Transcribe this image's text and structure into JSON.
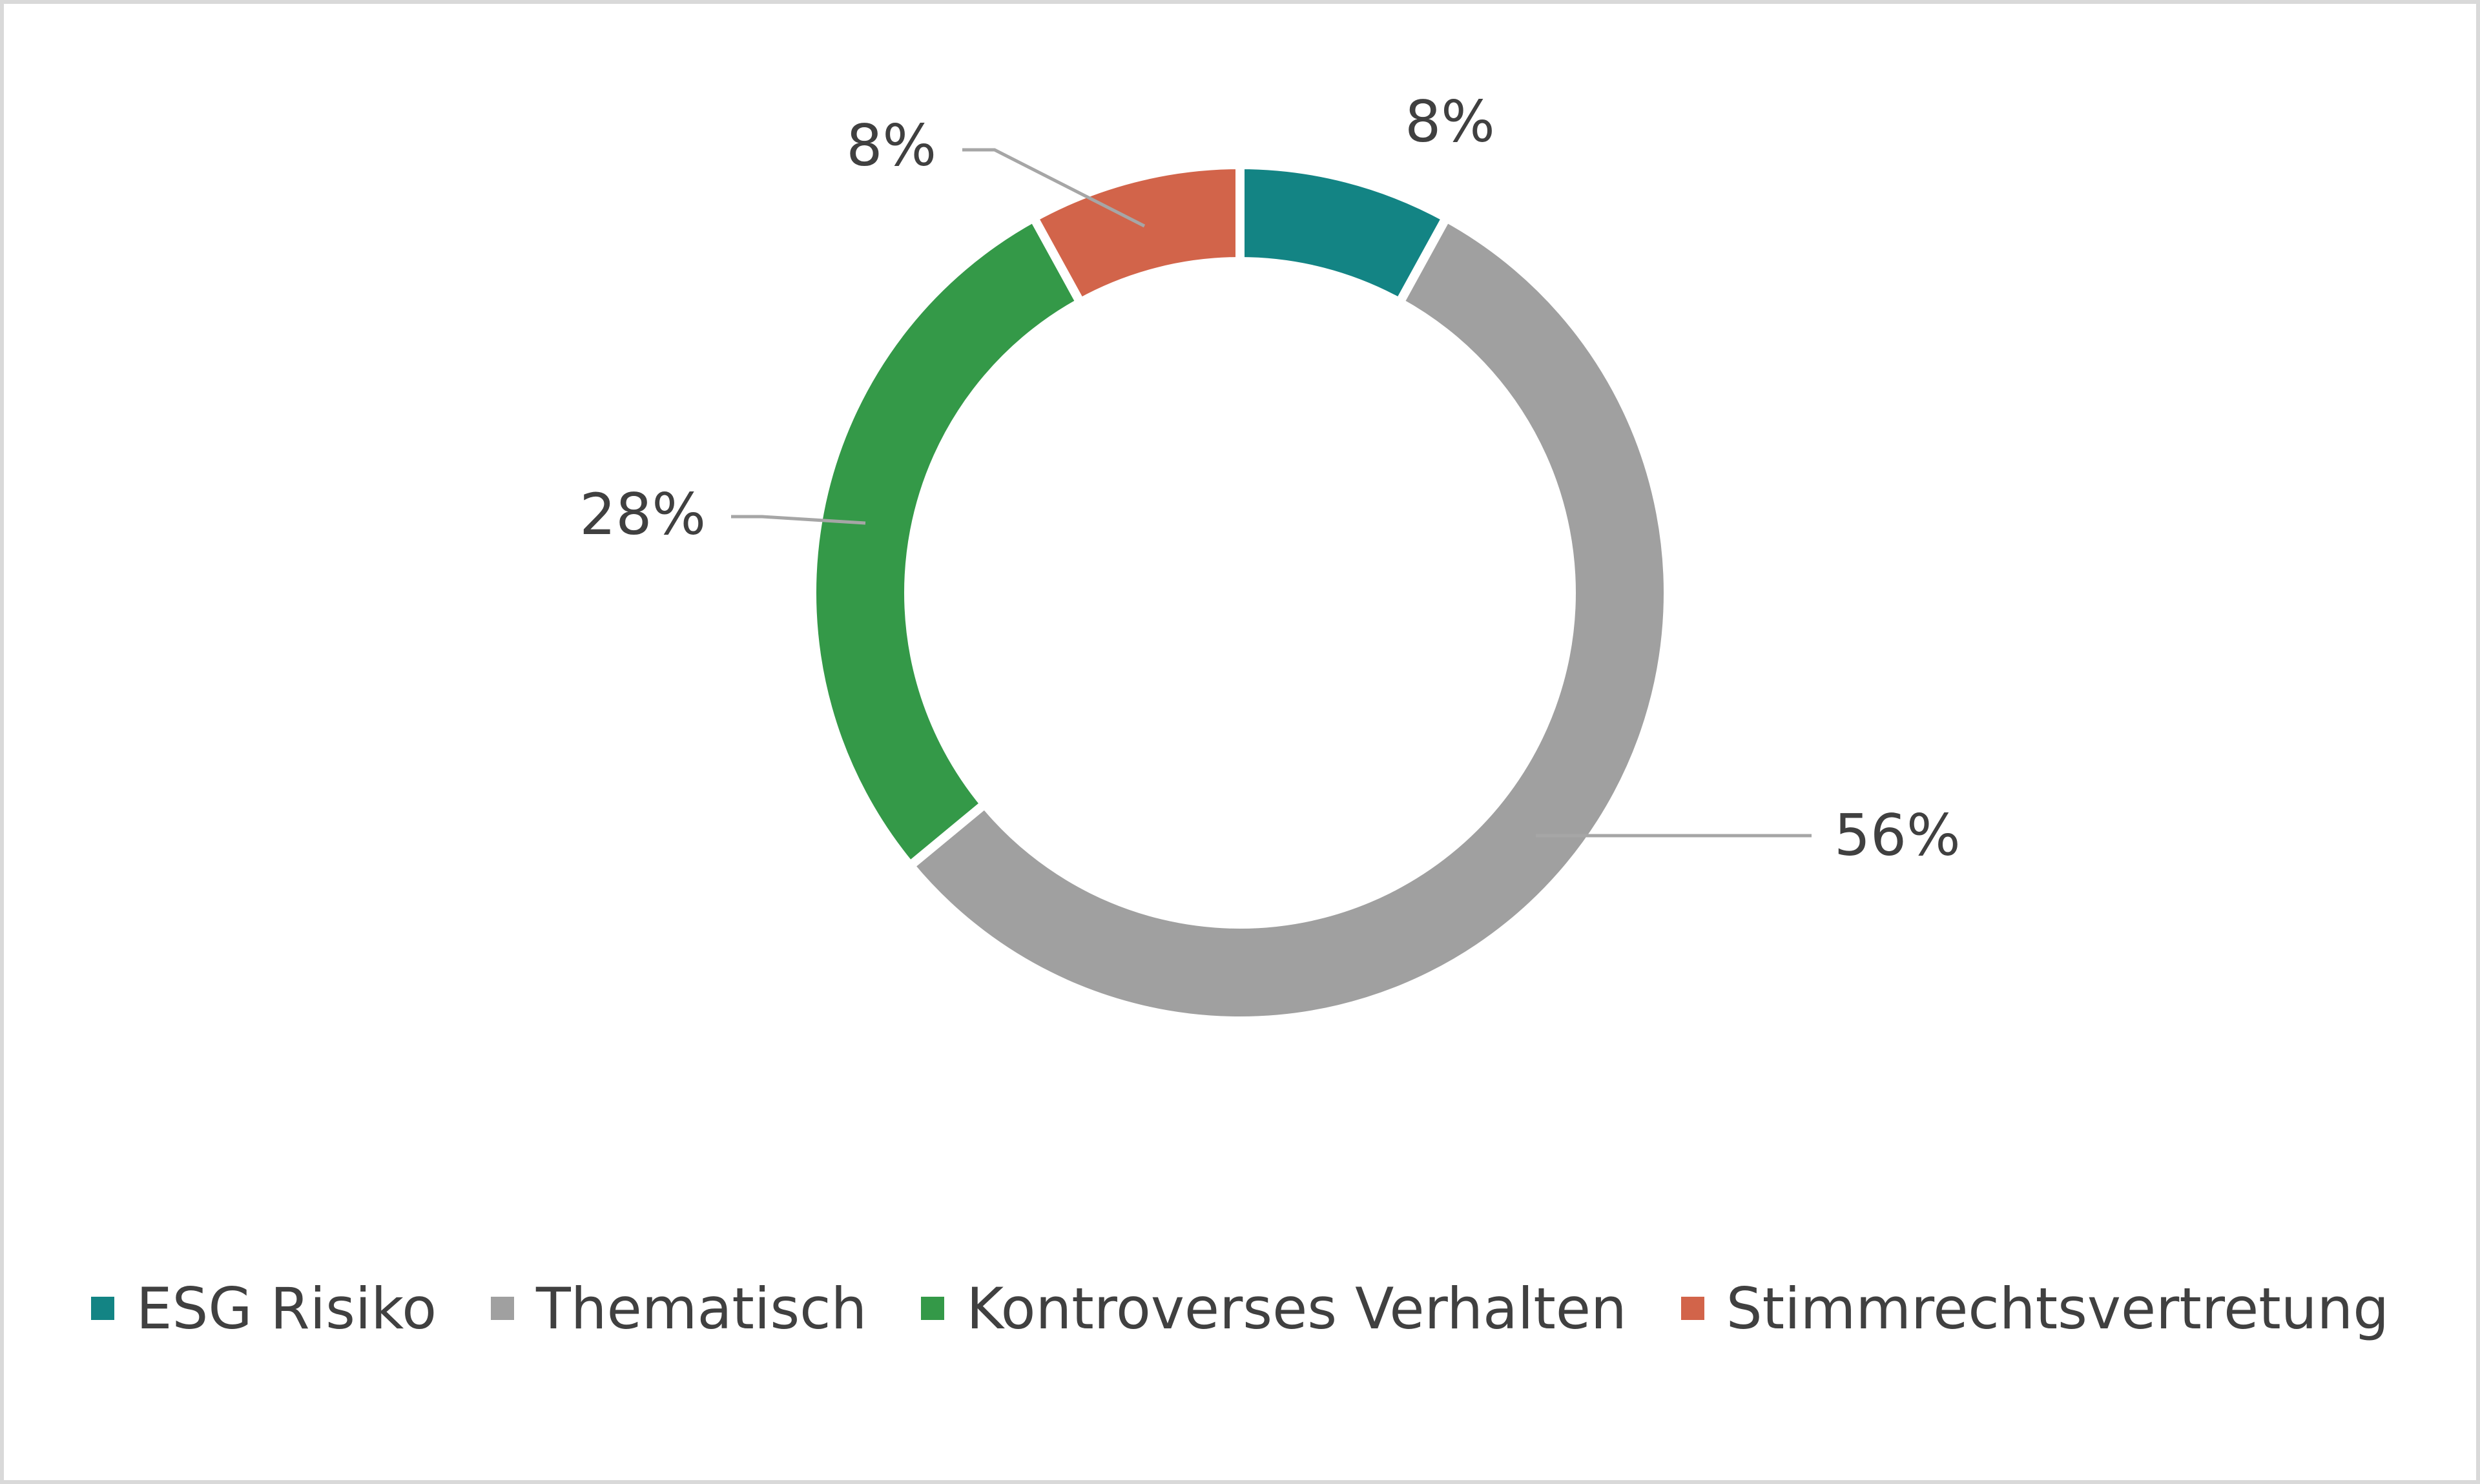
{
  "chart_data": {
    "type": "pie",
    "variant": "donut",
    "title": "",
    "categories": [
      "ESG Risiko",
      "Thematisch",
      "Kontroverses Verhalten",
      "Stimmrechtsvertretung"
    ],
    "values": [
      8,
      56,
      28,
      8
    ],
    "data_labels": [
      "8%",
      "56%",
      "28%",
      "8%"
    ],
    "unit": "%",
    "colors": [
      "#138484",
      "#a0a0a0",
      "#349948",
      "#d2644a"
    ],
    "legend_position": "bottom",
    "start_angle": "12 o'clock",
    "direction": "clockwise"
  }
}
